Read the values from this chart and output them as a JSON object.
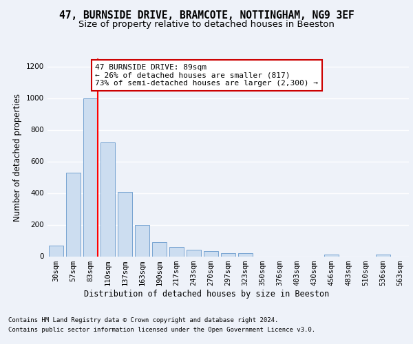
{
  "title_line1": "47, BURNSIDE DRIVE, BRAMCOTE, NOTTINGHAM, NG9 3EF",
  "title_line2": "Size of property relative to detached houses in Beeston",
  "xlabel": "Distribution of detached houses by size in Beeston",
  "ylabel": "Number of detached properties",
  "categories": [
    "30sqm",
    "57sqm",
    "83sqm",
    "110sqm",
    "137sqm",
    "163sqm",
    "190sqm",
    "217sqm",
    "243sqm",
    "270sqm",
    "297sqm",
    "323sqm",
    "350sqm",
    "376sqm",
    "403sqm",
    "430sqm",
    "456sqm",
    "483sqm",
    "510sqm",
    "536sqm",
    "563sqm"
  ],
  "values": [
    68,
    528,
    1000,
    720,
    408,
    198,
    90,
    60,
    42,
    32,
    18,
    18,
    0,
    0,
    0,
    0,
    10,
    0,
    0,
    10,
    0
  ],
  "bar_color": "#ccddf0",
  "bar_edge_color": "#6699cc",
  "red_line_index": 2,
  "annotation_text": "47 BURNSIDE DRIVE: 89sqm\n← 26% of detached houses are smaller (817)\n73% of semi-detached houses are larger (2,300) →",
  "ylim": [
    0,
    1250
  ],
  "yticks": [
    0,
    200,
    400,
    600,
    800,
    1000,
    1200
  ],
  "footer_line1": "Contains HM Land Registry data © Crown copyright and database right 2024.",
  "footer_line2": "Contains public sector information licensed under the Open Government Licence v3.0.",
  "bg_color": "#eef2f9",
  "plot_bg_color": "#eef2f9",
  "grid_color": "#ffffff",
  "annotation_box_color": "#ffffff",
  "annotation_box_edge": "#cc0000",
  "title1_fontsize": 10.5,
  "title2_fontsize": 9.5,
  "axis_label_fontsize": 8.5,
  "tick_fontsize": 7.5,
  "annotation_fontsize": 8,
  "footer_fontsize": 6.5
}
